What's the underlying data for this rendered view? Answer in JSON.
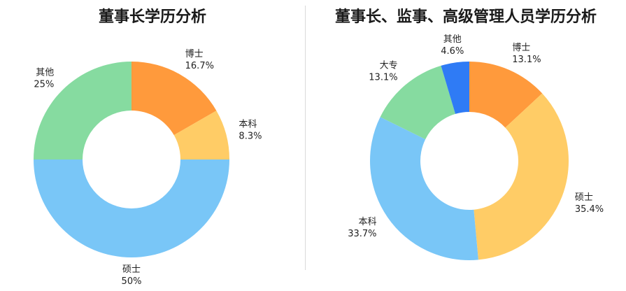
{
  "chart_data": [
    {
      "type": "pie",
      "donut": true,
      "title": "董事长学历分析",
      "slices": [
        {
          "label": "博士",
          "value": 16.7,
          "value_label": "16.7%",
          "color": "#FF9A3C"
        },
        {
          "label": "本科",
          "value": 8.3,
          "value_label": "8.3%",
          "color": "#FFCC66"
        },
        {
          "label": "硕士",
          "value": 50,
          "value_label": "50%",
          "color": "#79C6F7"
        },
        {
          "label": "其他",
          "value": 25,
          "value_label": "25%",
          "color": "#86DBA0"
        }
      ]
    },
    {
      "type": "pie",
      "donut": true,
      "title": "董事长、监事、高级管理人员学历分析",
      "slices": [
        {
          "label": "博士",
          "value": 13.1,
          "value_label": "13.1%",
          "color": "#FF9A3C"
        },
        {
          "label": "硕士",
          "value": 35.4,
          "value_label": "35.4%",
          "color": "#FFCC66"
        },
        {
          "label": "本科",
          "value": 33.7,
          "value_label": "33.7%",
          "color": "#79C6F7"
        },
        {
          "label": "大专",
          "value": 13.1,
          "value_label": "13.1%",
          "color": "#86DBA0"
        },
        {
          "label": "其他",
          "value": 4.6,
          "value_label": "4.6%",
          "color": "#2F7BF5"
        }
      ]
    }
  ]
}
